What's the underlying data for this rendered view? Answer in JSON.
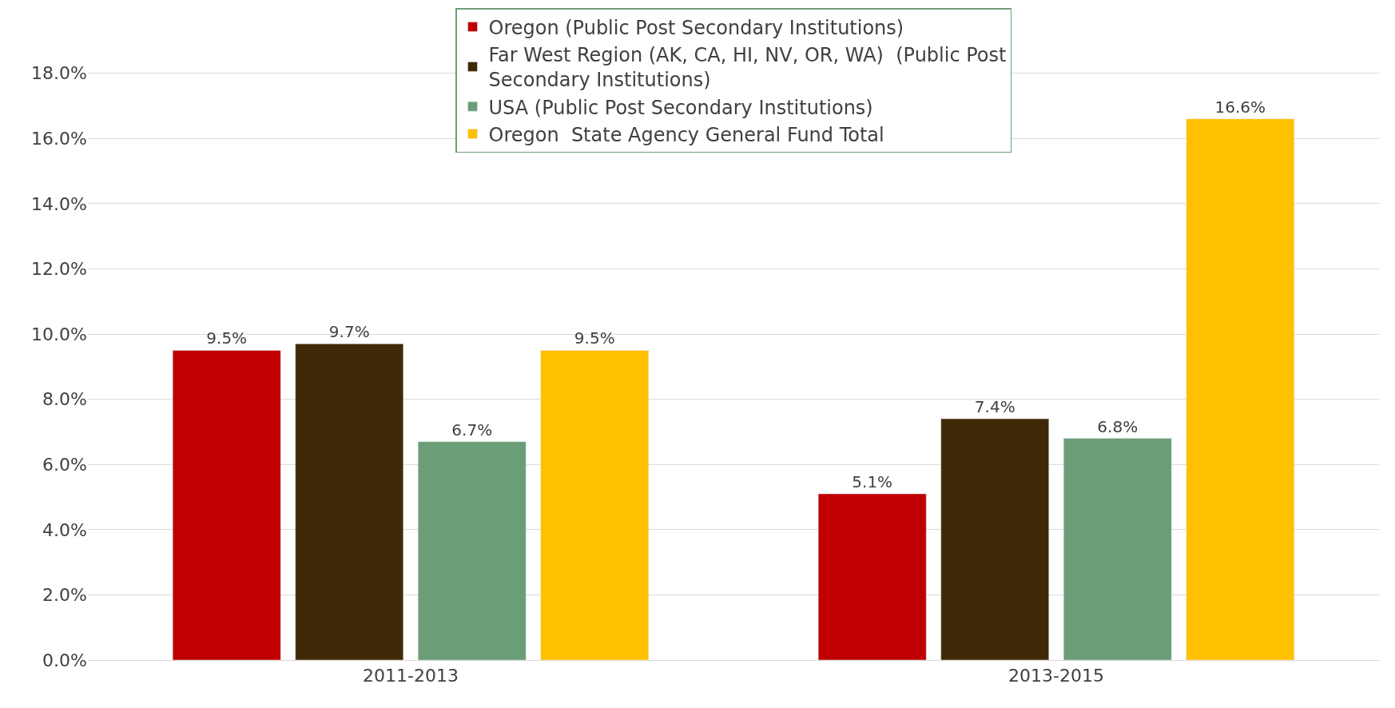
{
  "chart_data": {
    "type": "bar",
    "categories": [
      "2011-2013",
      "2013-2015"
    ],
    "series": [
      {
        "name": "Oregon (Public Post Secondary Institutions)",
        "color": "#c00000",
        "values": [
          9.5,
          5.1
        ],
        "value_labels": [
          "9.5%",
          "5.1%"
        ]
      },
      {
        "name": "Far West Region (AK, CA, HI, NV, OR, WA)  (Public Post Secondary Institutions)",
        "color": "#3f2906",
        "values": [
          9.7,
          7.4
        ],
        "value_labels": [
          "9.7%",
          "7.4%"
        ]
      },
      {
        "name": "USA (Public Post Secondary Institutions)",
        "color": "#6b9e76",
        "values": [
          6.7,
          6.8
        ],
        "value_labels": [
          "6.7%",
          "6.8%"
        ]
      },
      {
        "name": "Oregon  State Agency General Fund Total",
        "color": "#ffc000",
        "values": [
          9.5,
          16.6
        ],
        "value_labels": [
          "9.5%",
          "16.6%"
        ]
      }
    ],
    "ylim": [
      0,
      20
    ],
    "yticks": [
      {
        "value": 0,
        "label": "0.0%"
      },
      {
        "value": 2,
        "label": "2.0%"
      },
      {
        "value": 4,
        "label": "4.0%"
      },
      {
        "value": 6,
        "label": "6.0%"
      },
      {
        "value": 8,
        "label": "8.0%"
      },
      {
        "value": 10,
        "label": "10.0%"
      },
      {
        "value": 12,
        "label": "12.0%"
      },
      {
        "value": 14,
        "label": "14.0%"
      },
      {
        "value": 16,
        "label": "16.0%"
      },
      {
        "value": 18,
        "label": "18.0%"
      }
    ],
    "grid": "y",
    "legend": "top"
  }
}
